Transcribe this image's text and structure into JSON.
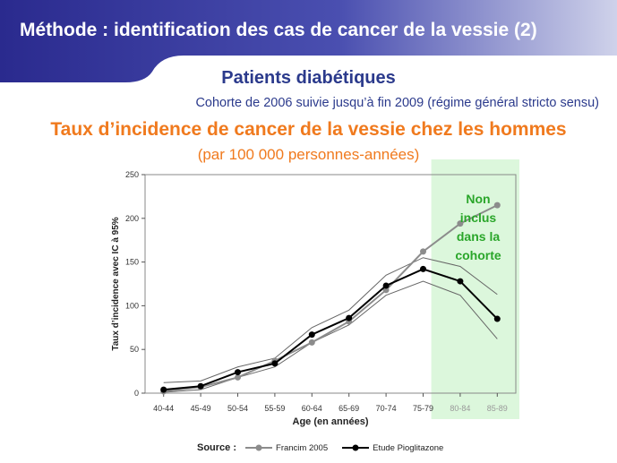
{
  "slide": {
    "title": "Méthode : identification des cas de cancer de la vessie (2)",
    "subtitle": "Patients diabétiques",
    "cohort": "Cohorte de 2006 suivie jusqu’à fin 2009 (régime général stricto sensu)",
    "heading": "Taux d’incidence de cancer de la vessie chez les hommes",
    "unit": "(par 100 000 personnes-années)",
    "note_lines": [
      "Non",
      "inclus",
      "dans la",
      "cohorte"
    ]
  },
  "colors": {
    "header": "#2f2f91",
    "accent": "#f07a1e",
    "subtitle": "#2b3a8c",
    "note": "#2aa62a",
    "excluded_zone": "#dcf7dc",
    "francim": "#8c8c8c",
    "pioglitazone": "#000000"
  },
  "legend": {
    "source_label": "Source :",
    "items": [
      "Francim 2005",
      "Etude Pioglitazone"
    ]
  },
  "chart_data": {
    "type": "line",
    "xlabel": "Age (en années)",
    "ylabel": "Taux d’incidence avec IC à 95%",
    "ylim": [
      0,
      250
    ],
    "yticks": [
      0,
      50,
      100,
      150,
      200,
      250
    ],
    "categories": [
      "40-44",
      "45-49",
      "50-54",
      "55-59",
      "60-64",
      "65-69",
      "70-74",
      "75-79",
      "80-84",
      "85-89"
    ],
    "excluded_categories": [
      "80-84",
      "85-89"
    ],
    "series": [
      {
        "name": "Francim 2005",
        "values": [
          2,
          7,
          18,
          37,
          58,
          82,
          118,
          162,
          194,
          215
        ]
      },
      {
        "name": "Etude Pioglitazone",
        "values": [
          4,
          8,
          24,
          34,
          67,
          86,
          123,
          142,
          128,
          85
        ],
        "ci_lower": [
          1,
          4,
          18,
          30,
          58,
          78,
          112,
          128,
          112,
          62
        ],
        "ci_upper": [
          12,
          14,
          30,
          40,
          75,
          95,
          135,
          155,
          145,
          113
        ]
      }
    ],
    "grid": false
  }
}
